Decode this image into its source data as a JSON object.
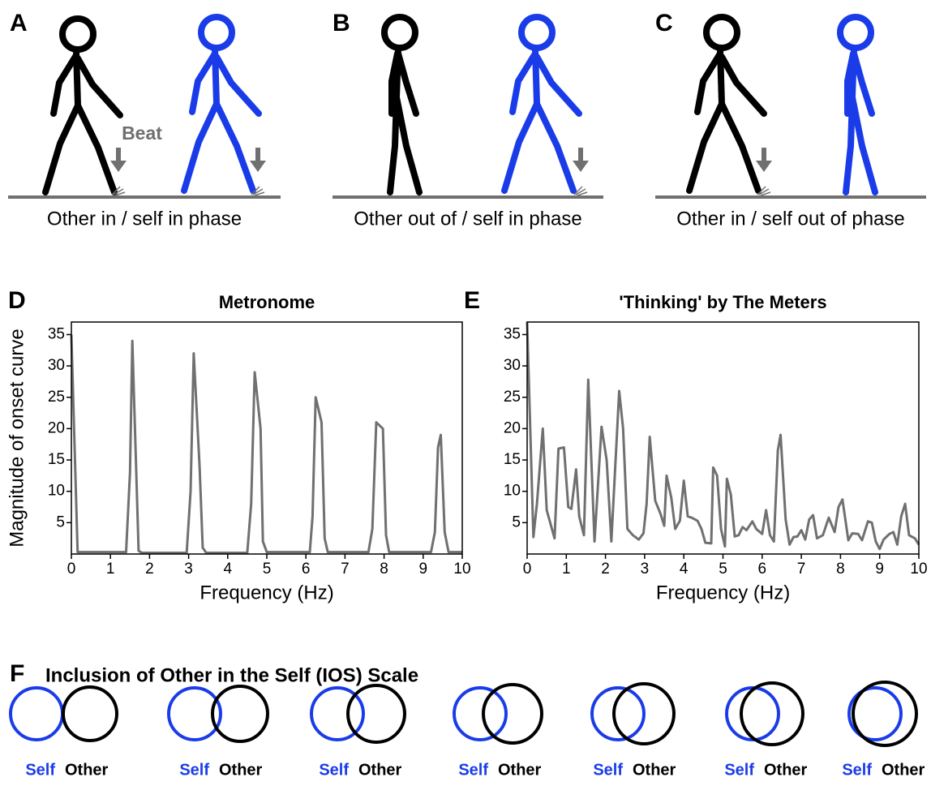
{
  "panels": [
    {
      "label": "A",
      "caption": "Other in / self in phase",
      "beat": "Beat"
    },
    {
      "label": "B",
      "caption": "Other out of / self in phase"
    },
    {
      "label": "C",
      "caption": "Other in / self out of phase"
    }
  ],
  "chart_data": [
    {
      "type": "line",
      "label": "D",
      "title": "Metronome",
      "xlabel": "Frequency (Hz)",
      "ylabel": "Magnitude of onset curve",
      "color": "#707070",
      "x": [
        0,
        0.16,
        1.4,
        1.5,
        1.56,
        1.72,
        1.8,
        2.95,
        3.05,
        3.13,
        3.28,
        3.36,
        3.45,
        4.5,
        4.6,
        4.69,
        4.84,
        4.9,
        5.0,
        6.1,
        6.17,
        6.25,
        6.4,
        6.48,
        6.56,
        7.6,
        7.7,
        7.8,
        7.97,
        8.05,
        8.13,
        9.2,
        9.3,
        9.38,
        9.45,
        9.55,
        9.65,
        10
      ],
      "values": [
        35,
        0.3,
        0.3,
        13,
        34,
        0.5,
        0.2,
        0.2,
        10,
        32,
        14,
        1,
        0.2,
        0.2,
        8,
        29,
        20,
        2,
        0.3,
        0.3,
        6,
        25,
        21,
        2.5,
        0.3,
        0.3,
        4,
        21,
        20,
        3,
        0.3,
        0.3,
        3.5,
        17,
        19,
        3.5,
        0.3,
        0.3
      ],
      "xlim": [
        0,
        10
      ],
      "ylim": [
        0,
        37
      ],
      "xticks": [
        0,
        1,
        2,
        3,
        4,
        5,
        6,
        7,
        8,
        9,
        10
      ],
      "yticks": [
        5,
        10,
        15,
        20,
        25,
        30,
        35
      ]
    },
    {
      "type": "line",
      "label": "E",
      "title": "'Thinking' by The Meters",
      "xlabel": "Frequency (Hz)",
      "color": "#707070",
      "x": [
        0,
        0.16,
        0.25,
        0.4,
        0.5,
        0.7,
        0.8,
        0.94,
        1.05,
        1.13,
        1.25,
        1.33,
        1.45,
        1.56,
        1.72,
        1.9,
        2.03,
        2.15,
        2.35,
        2.45,
        2.56,
        2.7,
        2.85,
        2.97,
        3.05,
        3.13,
        3.27,
        3.4,
        3.5,
        3.56,
        3.68,
        3.78,
        3.9,
        4.0,
        4.1,
        4.2,
        4.35,
        4.45,
        4.55,
        4.7,
        4.75,
        4.85,
        4.95,
        5.05,
        5.1,
        5.2,
        5.3,
        5.4,
        5.5,
        5.6,
        5.75,
        5.85,
        6.0,
        6.1,
        6.2,
        6.3,
        6.4,
        6.47,
        6.6,
        6.7,
        6.8,
        6.9,
        7.0,
        7.1,
        7.2,
        7.3,
        7.4,
        7.55,
        7.7,
        7.85,
        7.95,
        8.05,
        8.2,
        8.3,
        8.45,
        8.55,
        8.7,
        8.8,
        8.9,
        9.0,
        9.1,
        9.25,
        9.35,
        9.45,
        9.55,
        9.65,
        9.75,
        9.9,
        10
      ],
      "values": [
        37,
        2.7,
        8,
        20,
        7,
        2.5,
        16.8,
        17,
        7.5,
        7.2,
        13.5,
        6,
        3,
        27.8,
        2,
        20.3,
        15,
        2,
        26,
        20,
        4,
        3,
        2.3,
        3.3,
        8,
        18.7,
        8.5,
        6.5,
        4.5,
        12.5,
        9,
        4,
        5.3,
        11.7,
        6,
        5.8,
        5.3,
        4,
        1.8,
        1.7,
        13.8,
        12.5,
        4,
        1.2,
        12,
        9.5,
        2.8,
        3,
        4.3,
        3.8,
        5.2,
        4,
        3.2,
        7,
        3,
        2,
        16.5,
        19,
        5.5,
        1.5,
        2.7,
        2.8,
        3.8,
        2.3,
        5.5,
        6.2,
        2.5,
        3,
        5.8,
        3.5,
        7.5,
        8.7,
        2.2,
        3.3,
        3.2,
        2.2,
        5.2,
        5,
        2,
        0.8,
        2.3,
        3.2,
        3.5,
        1.5,
        6,
        8,
        3,
        2.5,
        1.5
      ],
      "xlim": [
        0,
        10
      ],
      "ylim": [
        0,
        37
      ],
      "xticks": [
        0,
        1,
        2,
        3,
        4,
        5,
        6,
        7,
        8,
        9,
        10
      ],
      "yticks": [
        5,
        10,
        15,
        20,
        25,
        30,
        35
      ]
    }
  ],
  "ios": {
    "label": "F",
    "title": "Inclusion of Other in the Self (IOS) Scale",
    "pairs": [
      {
        "self": "Self",
        "other": "Other"
      },
      {
        "self": "Self",
        "other": "Other"
      },
      {
        "self": "Self",
        "other": "Other"
      },
      {
        "self": "Self",
        "other": "Other"
      },
      {
        "self": "Self",
        "other": "Other"
      },
      {
        "self": "Self",
        "other": "Other"
      },
      {
        "self": "Self",
        "other": "Other"
      }
    ]
  }
}
